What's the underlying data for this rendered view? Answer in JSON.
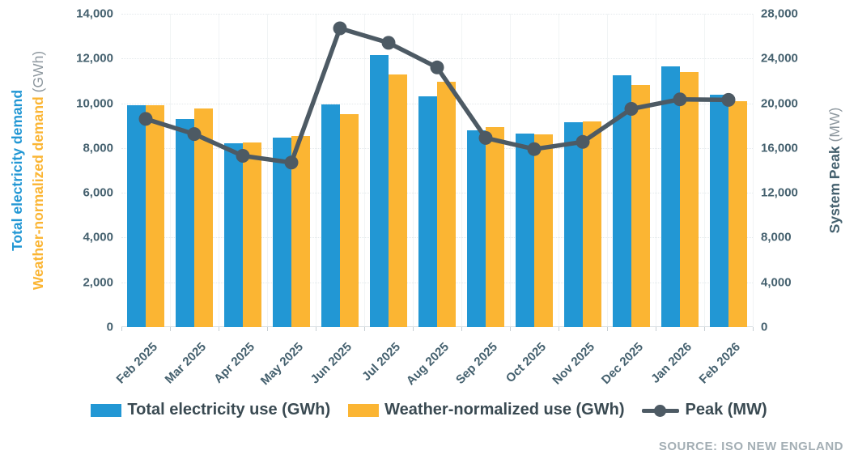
{
  "chart_data": {
    "type": "bar",
    "subtype": "combo-bar-line-dual-axis",
    "categories": [
      "Feb 2025",
      "Mar 2025",
      "Apr 2025",
      "May 2025",
      "Jun 2025",
      "Jul 2025",
      "Aug 2025",
      "Sep 2025",
      "Oct 2025",
      "Nov 2025",
      "Dec 2025",
      "Jan 2026",
      "Feb 2026"
    ],
    "series": [
      {
        "name": "Total electricity use (GWh)",
        "type": "bar",
        "axis": "left",
        "color": "#2297d4",
        "values": [
          9900,
          9300,
          8200,
          8450,
          9950,
          12150,
          10300,
          8800,
          8650,
          9150,
          11250,
          11650,
          10400
        ]
      },
      {
        "name": "Weather-normalized use (GWh)",
        "type": "bar",
        "axis": "left",
        "color": "#fbb533",
        "values": [
          9900,
          9750,
          8250,
          8550,
          9500,
          11300,
          10950,
          8950,
          8600,
          9200,
          10800,
          11400,
          10100
        ]
      },
      {
        "name": "Peak (MW)",
        "type": "line",
        "axis": "right",
        "color": "#4d5a64",
        "values": [
          18600,
          17250,
          15300,
          14700,
          26700,
          25400,
          23200,
          16900,
          15900,
          16550,
          19500,
          20350,
          20300
        ]
      }
    ],
    "left_axis": {
      "min": 0,
      "max": 14000,
      "step": 2000,
      "tick_labels": [
        "0",
        "2,000",
        "4,000",
        "6,000",
        "8,000",
        "10,000",
        "12,000",
        "14,000"
      ],
      "title_primary": "Total electricity demand",
      "title_secondary": "Weather-normalized demand",
      "title_unit": "(GWh)"
    },
    "right_axis": {
      "min": 0,
      "max": 28000,
      "step": 4000,
      "tick_labels": [
        "0",
        "4,000",
        "8,000",
        "12,000",
        "16,000",
        "20,000",
        "24,000",
        "28,000"
      ],
      "title": "System Peak",
      "title_unit": "(MW)"
    },
    "grid": true,
    "legend_position": "bottom",
    "legend": [
      {
        "label": "Total electricity use (GWh)",
        "swatch": "bar",
        "color": "#2297d4"
      },
      {
        "label": "Weather-normalized use (GWh)",
        "swatch": "bar",
        "color": "#fbb533"
      },
      {
        "label": "Peak (MW)",
        "swatch": "line-dot",
        "color": "#4d5a64"
      }
    ],
    "source": "SOURCE: ISO NEW ENGLAND"
  },
  "colors": {
    "bar_blue": "#2297d4",
    "bar_yellow": "#fbb533",
    "peak_line": "#4d5a64",
    "axis_text": "#44606e",
    "muted_text": "#8d979e",
    "source_text": "#a3aeb4",
    "gridline": "#e4e9ec"
  }
}
